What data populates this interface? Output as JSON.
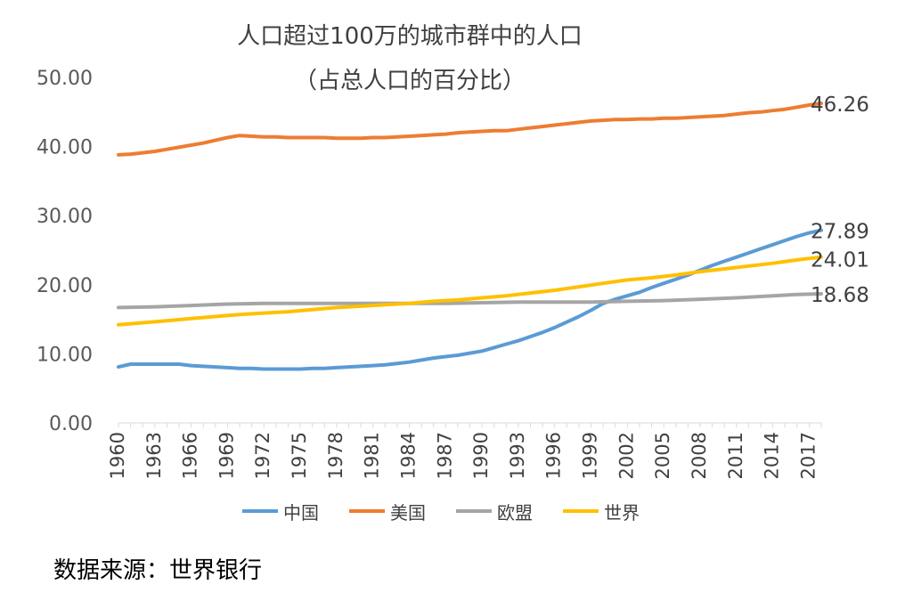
{
  "title_line1": "人口超过100万的城市群中的人口",
  "title_line2": "（占总人口的百分比）",
  "source": "数据来源：世界银行",
  "chart_data": {
    "type": "line",
    "title": "人口超过100万的城市群中的人口（占总人口的百分比）",
    "xlabel": "",
    "ylabel": "",
    "ylim": [
      0,
      50
    ],
    "yticks": [
      "0.00",
      "10.00",
      "20.00",
      "30.00",
      "40.00",
      "50.00"
    ],
    "x_range": [
      1960,
      2018
    ],
    "xticks": [
      1960,
      1963,
      1966,
      1969,
      1972,
      1975,
      1978,
      1981,
      1984,
      1987,
      1990,
      1993,
      1996,
      1999,
      2002,
      2005,
      2008,
      2011,
      2014,
      2017
    ],
    "grid": false,
    "legend_position": "bottom",
    "series": [
      {
        "name": "中国",
        "color": "#5B9BD5",
        "end_label": "27.89",
        "points": [
          [
            1960,
            8.1
          ],
          [
            1961,
            8.5
          ],
          [
            1962,
            8.5
          ],
          [
            1963,
            8.5
          ],
          [
            1964,
            8.5
          ],
          [
            1965,
            8.5
          ],
          [
            1966,
            8.3
          ],
          [
            1967,
            8.2
          ],
          [
            1968,
            8.1
          ],
          [
            1969,
            8.0
          ],
          [
            1970,
            7.9
          ],
          [
            1971,
            7.9
          ],
          [
            1972,
            7.8
          ],
          [
            1973,
            7.8
          ],
          [
            1974,
            7.8
          ],
          [
            1975,
            7.8
          ],
          [
            1976,
            7.9
          ],
          [
            1977,
            7.9
          ],
          [
            1978,
            8.0
          ],
          [
            1979,
            8.1
          ],
          [
            1980,
            8.2
          ],
          [
            1981,
            8.3
          ],
          [
            1982,
            8.4
          ],
          [
            1983,
            8.6
          ],
          [
            1984,
            8.8
          ],
          [
            1985,
            9.1
          ],
          [
            1986,
            9.4
          ],
          [
            1987,
            9.6
          ],
          [
            1988,
            9.8
          ],
          [
            1989,
            10.1
          ],
          [
            1990,
            10.4
          ],
          [
            1991,
            10.9
          ],
          [
            1992,
            11.4
          ],
          [
            1993,
            11.9
          ],
          [
            1994,
            12.5
          ],
          [
            1995,
            13.1
          ],
          [
            1996,
            13.8
          ],
          [
            1997,
            14.6
          ],
          [
            1998,
            15.4
          ],
          [
            1999,
            16.3
          ],
          [
            2000,
            17.3
          ],
          [
            2001,
            17.9
          ],
          [
            2002,
            18.4
          ],
          [
            2003,
            18.9
          ],
          [
            2004,
            19.6
          ],
          [
            2005,
            20.2
          ],
          [
            2006,
            20.8
          ],
          [
            2007,
            21.4
          ],
          [
            2008,
            22.1
          ],
          [
            2009,
            22.8
          ],
          [
            2010,
            23.4
          ],
          [
            2011,
            24.0
          ],
          [
            2012,
            24.6
          ],
          [
            2013,
            25.2
          ],
          [
            2014,
            25.8
          ],
          [
            2015,
            26.4
          ],
          [
            2016,
            27.0
          ],
          [
            2017,
            27.5
          ],
          [
            2018,
            27.89
          ]
        ]
      },
      {
        "name": "美国",
        "color": "#ED7D31",
        "end_label": "46.26",
        "points": [
          [
            1960,
            38.8
          ],
          [
            1961,
            38.9
          ],
          [
            1962,
            39.1
          ],
          [
            1963,
            39.3
          ],
          [
            1964,
            39.6
          ],
          [
            1965,
            39.9
          ],
          [
            1966,
            40.2
          ],
          [
            1967,
            40.5
          ],
          [
            1968,
            40.9
          ],
          [
            1969,
            41.3
          ],
          [
            1970,
            41.6
          ],
          [
            1971,
            41.5
          ],
          [
            1972,
            41.4
          ],
          [
            1973,
            41.4
          ],
          [
            1974,
            41.3
          ],
          [
            1975,
            41.3
          ],
          [
            1976,
            41.3
          ],
          [
            1977,
            41.3
          ],
          [
            1978,
            41.2
          ],
          [
            1979,
            41.2
          ],
          [
            1980,
            41.2
          ],
          [
            1981,
            41.3
          ],
          [
            1982,
            41.3
          ],
          [
            1983,
            41.4
          ],
          [
            1984,
            41.5
          ],
          [
            1985,
            41.6
          ],
          [
            1986,
            41.7
          ],
          [
            1987,
            41.8
          ],
          [
            1988,
            42.0
          ],
          [
            1989,
            42.1
          ],
          [
            1990,
            42.2
          ],
          [
            1991,
            42.3
          ],
          [
            1992,
            42.3
          ],
          [
            1993,
            42.5
          ],
          [
            1994,
            42.7
          ],
          [
            1995,
            42.9
          ],
          [
            1996,
            43.1
          ],
          [
            1997,
            43.3
          ],
          [
            1998,
            43.5
          ],
          [
            1999,
            43.7
          ],
          [
            2000,
            43.8
          ],
          [
            2001,
            43.9
          ],
          [
            2002,
            43.9
          ],
          [
            2003,
            44.0
          ],
          [
            2004,
            44.0
          ],
          [
            2005,
            44.1
          ],
          [
            2006,
            44.1
          ],
          [
            2007,
            44.2
          ],
          [
            2008,
            44.3
          ],
          [
            2009,
            44.4
          ],
          [
            2010,
            44.5
          ],
          [
            2011,
            44.7
          ],
          [
            2012,
            44.9
          ],
          [
            2013,
            45.0
          ],
          [
            2014,
            45.2
          ],
          [
            2015,
            45.4
          ],
          [
            2016,
            45.7
          ],
          [
            2017,
            46.0
          ],
          [
            2018,
            46.26
          ]
        ]
      },
      {
        "name": "欧盟",
        "color": "#A5A5A5",
        "end_label": "18.68",
        "points": [
          [
            1960,
            16.7
          ],
          [
            1963,
            16.8
          ],
          [
            1966,
            17.0
          ],
          [
            1969,
            17.2
          ],
          [
            1972,
            17.3
          ],
          [
            1975,
            17.3
          ],
          [
            1978,
            17.3
          ],
          [
            1981,
            17.3
          ],
          [
            1984,
            17.3
          ],
          [
            1987,
            17.3
          ],
          [
            1990,
            17.4
          ],
          [
            1993,
            17.5
          ],
          [
            1996,
            17.5
          ],
          [
            1999,
            17.5
          ],
          [
            2002,
            17.6
          ],
          [
            2005,
            17.7
          ],
          [
            2008,
            17.9
          ],
          [
            2011,
            18.1
          ],
          [
            2014,
            18.4
          ],
          [
            2016,
            18.6
          ],
          [
            2018,
            18.68
          ]
        ]
      },
      {
        "name": "世界",
        "color": "#FFC000",
        "end_label": "24.01",
        "points": [
          [
            1960,
            14.2
          ],
          [
            1962,
            14.5
          ],
          [
            1964,
            14.8
          ],
          [
            1966,
            15.1
          ],
          [
            1968,
            15.4
          ],
          [
            1970,
            15.7
          ],
          [
            1972,
            15.9
          ],
          [
            1974,
            16.1
          ],
          [
            1976,
            16.4
          ],
          [
            1978,
            16.7
          ],
          [
            1980,
            16.9
          ],
          [
            1982,
            17.1
          ],
          [
            1984,
            17.3
          ],
          [
            1986,
            17.6
          ],
          [
            1988,
            17.8
          ],
          [
            1990,
            18.1
          ],
          [
            1992,
            18.4
          ],
          [
            1994,
            18.8
          ],
          [
            1996,
            19.2
          ],
          [
            1998,
            19.7
          ],
          [
            2000,
            20.2
          ],
          [
            2002,
            20.7
          ],
          [
            2004,
            21.0
          ],
          [
            2006,
            21.4
          ],
          [
            2008,
            21.9
          ],
          [
            2010,
            22.3
          ],
          [
            2012,
            22.7
          ],
          [
            2014,
            23.1
          ],
          [
            2016,
            23.6
          ],
          [
            2018,
            24.01
          ]
        ]
      }
    ]
  }
}
